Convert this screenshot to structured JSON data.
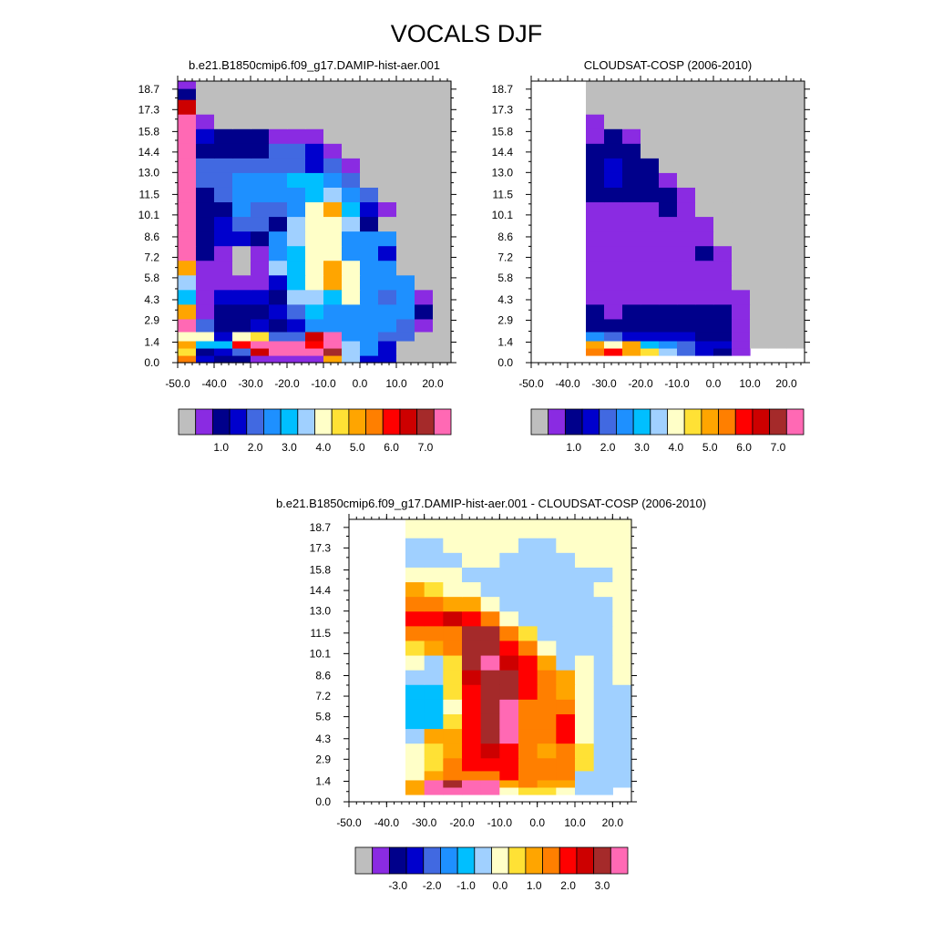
{
  "figure": {
    "title": "VOCALS DJF"
  },
  "chart_data": [
    {
      "type": "heatmap",
      "title": "b.e21.B1850cmip6.f09_g17.DAMIP-hist-aer.001",
      "x_tick_labels": [
        "-50.0",
        "-40.0",
        "-30.0",
        "-20.0",
        "-10.0",
        "0.0",
        "10.0",
        "20.0"
      ],
      "y_tick_labels": [
        "0.0",
        "1.4",
        "2.9",
        "4.3",
        "5.8",
        "7.2",
        "8.6",
        "10.1",
        "11.5",
        "13.0",
        "14.4",
        "15.8",
        "17.3",
        "18.7"
      ],
      "colorbar_labels": [
        "1.0",
        "2.0",
        "3.0",
        "4.0",
        "5.0",
        "6.0",
        "7.0"
      ],
      "colorbar_colors": [
        "#bebebe",
        "#8a2be2",
        "#00008b",
        "#0000cd",
        "#4169e1",
        "#1e90ff",
        "#00bfff",
        "#a0d0ff",
        "#ffffc8",
        "#ffe135",
        "#ffa500",
        "#ff7f00",
        "#ff0000",
        "#cd0000",
        "#a52a2a",
        "#ff69b4"
      ],
      "x": [
        -47.5,
        -42.5,
        -37.5,
        -32.5,
        -27.5,
        -22.5,
        -17.5,
        -12.5,
        -7.5,
        -2.5,
        2.5,
        7.5,
        12.5,
        17.5,
        22.5
      ],
      "y": [
        0.25,
        0.75,
        1.25,
        1.75,
        2.5,
        3.5,
        4.5,
        5.5,
        6.5,
        7.5,
        8.5,
        9.5,
        10.5,
        11.5,
        12.5,
        13.5,
        14.5,
        15.5,
        16.5,
        17.5,
        18.5,
        19.0
      ],
      "z_class": [
        [
          11,
          3,
          2,
          2,
          1,
          1,
          1,
          1,
          10,
          7,
          3,
          3,
          0,
          0,
          0
        ],
        [
          9,
          2,
          3,
          4,
          13,
          15,
          15,
          15,
          14,
          7,
          5,
          3,
          0,
          0,
          0
        ],
        [
          10,
          6,
          6,
          12,
          15,
          15,
          15,
          12,
          15,
          7,
          5,
          3,
          0,
          0,
          0
        ],
        [
          8,
          8,
          3,
          8,
          9,
          4,
          4,
          13,
          15,
          5,
          5,
          4,
          4,
          0,
          0
        ],
        [
          15,
          4,
          2,
          2,
          3,
          2,
          3,
          5,
          5,
          5,
          5,
          5,
          4,
          1,
          0
        ],
        [
          10,
          1,
          2,
          2,
          2,
          3,
          4,
          6,
          5,
          5,
          5,
          5,
          5,
          2,
          0
        ],
        [
          6,
          1,
          3,
          3,
          3,
          2,
          7,
          7,
          6,
          8,
          5,
          4,
          5,
          1,
          0
        ],
        [
          7,
          1,
          1,
          1,
          1,
          3,
          6,
          8,
          10,
          8,
          5,
          5,
          5,
          0,
          0
        ],
        [
          10,
          1,
          1,
          0,
          1,
          7,
          6,
          8,
          10,
          8,
          5,
          5,
          0,
          0,
          0
        ],
        [
          15,
          2,
          1,
          0,
          1,
          5,
          6,
          8,
          8,
          5,
          5,
          3,
          0,
          0,
          0
        ],
        [
          15,
          2,
          3,
          3,
          2,
          5,
          7,
          8,
          8,
          5,
          5,
          5,
          0,
          0,
          0
        ],
        [
          15,
          2,
          3,
          4,
          4,
          2,
          7,
          8,
          8,
          7,
          2,
          0,
          0,
          0,
          0
        ],
        [
          15,
          2,
          2,
          5,
          4,
          4,
          5,
          8,
          10,
          6,
          3,
          1,
          0,
          0,
          0
        ],
        [
          15,
          2,
          4,
          5,
          5,
          5,
          5,
          6,
          7,
          5,
          4,
          0,
          0,
          0,
          0
        ],
        [
          15,
          4,
          4,
          5,
          5,
          5,
          6,
          6,
          5,
          4,
          0,
          0,
          0,
          0,
          0
        ],
        [
          15,
          4,
          4,
          4,
          4,
          4,
          4,
          3,
          4,
          1,
          0,
          0,
          0,
          0,
          0
        ],
        [
          15,
          2,
          2,
          2,
          2,
          4,
          4,
          3,
          1,
          0,
          0,
          0,
          0,
          0,
          0
        ],
        [
          15,
          3,
          2,
          2,
          2,
          1,
          1,
          1,
          0,
          0,
          0,
          0,
          0,
          0,
          0
        ],
        [
          15,
          1,
          0,
          0,
          0,
          0,
          0,
          0,
          0,
          0,
          0,
          0,
          0,
          0,
          0
        ],
        [
          13,
          0,
          0,
          0,
          0,
          0,
          0,
          0,
          0,
          0,
          0,
          0,
          0,
          0,
          0
        ],
        [
          2,
          0,
          0,
          0,
          0,
          0,
          0,
          0,
          0,
          0,
          0,
          0,
          0,
          0,
          0
        ],
        [
          1,
          0,
          0,
          0,
          0,
          0,
          0,
          0,
          0,
          0,
          0,
          0,
          0,
          0,
          0
        ]
      ]
    },
    {
      "type": "heatmap",
      "title": "CLOUDSAT-COSP (2006-2010)",
      "x_tick_labels": [
        "-50.0",
        "-40.0",
        "-30.0",
        "-20.0",
        "-10.0",
        "0.0",
        "10.0",
        "20.0"
      ],
      "y_tick_labels": [
        "0.0",
        "1.4",
        "2.9",
        "4.3",
        "5.8",
        "7.2",
        "8.6",
        "10.1",
        "11.5",
        "13.0",
        "14.4",
        "15.8",
        "17.3",
        "18.7"
      ],
      "colorbar_labels": [
        "1.0",
        "2.0",
        "3.0",
        "4.0",
        "5.0",
        "6.0",
        "7.0"
      ],
      "colorbar_colors": [
        "#bebebe",
        "#8a2be2",
        "#00008b",
        "#0000cd",
        "#4169e1",
        "#1e90ff",
        "#00bfff",
        "#a0d0ff",
        "#ffffc8",
        "#ffe135",
        "#ffa500",
        "#ff7f00",
        "#ff0000",
        "#cd0000",
        "#a52a2a",
        "#ff69b4"
      ],
      "x": [
        -47.5,
        -42.5,
        -37.5,
        -32.5,
        -27.5,
        -22.5,
        -17.5,
        -12.5,
        -7.5,
        -2.5,
        2.5,
        7.5,
        12.5,
        17.5,
        22.5
      ],
      "y": [
        0.25,
        0.75,
        1.25,
        1.75,
        2.5,
        3.5,
        4.5,
        5.5,
        6.5,
        7.5,
        8.5,
        9.5,
        10.5,
        11.5,
        12.5,
        13.5,
        14.5,
        15.5,
        16.5,
        17.5,
        18.5,
        19.0
      ],
      "z_class": [
        [
          -1,
          -1,
          -1,
          -1,
          -1,
          -1,
          -1,
          -1,
          -1,
          -1,
          -1,
          -1,
          -1,
          -1,
          -1
        ],
        [
          -1,
          -1,
          -1,
          11,
          12,
          10,
          9,
          7,
          4,
          3,
          2,
          1,
          -1,
          -1,
          -1
        ],
        [
          -1,
          -1,
          -1,
          10,
          8,
          10,
          6,
          5,
          4,
          3,
          3,
          1,
          0,
          0,
          0
        ],
        [
          -1,
          -1,
          -1,
          5,
          4,
          3,
          3,
          3,
          3,
          2,
          2,
          1,
          0,
          0,
          0
        ],
        [
          -1,
          -1,
          -1,
          2,
          2,
          2,
          2,
          2,
          2,
          2,
          2,
          1,
          0,
          0,
          0
        ],
        [
          -1,
          -1,
          -1,
          2,
          1,
          2,
          2,
          2,
          2,
          2,
          2,
          1,
          0,
          0,
          0
        ],
        [
          -1,
          -1,
          -1,
          1,
          1,
          1,
          1,
          1,
          1,
          1,
          1,
          1,
          0,
          0,
          0
        ],
        [
          -1,
          -1,
          -1,
          1,
          1,
          1,
          1,
          1,
          1,
          1,
          1,
          0,
          0,
          0,
          0
        ],
        [
          -1,
          -1,
          -1,
          1,
          1,
          1,
          1,
          1,
          1,
          1,
          1,
          0,
          0,
          0,
          0
        ],
        [
          -1,
          -1,
          -1,
          1,
          1,
          1,
          1,
          1,
          1,
          2,
          1,
          0,
          0,
          0,
          0
        ],
        [
          -1,
          -1,
          -1,
          1,
          1,
          1,
          1,
          1,
          1,
          1,
          0,
          0,
          0,
          0,
          0
        ],
        [
          -1,
          -1,
          -1,
          1,
          1,
          1,
          1,
          1,
          1,
          1,
          0,
          0,
          0,
          0,
          0
        ],
        [
          -1,
          -1,
          -1,
          1,
          1,
          1,
          1,
          2,
          1,
          0,
          0,
          0,
          0,
          0,
          0
        ],
        [
          -1,
          -1,
          -1,
          2,
          2,
          2,
          2,
          2,
          1,
          0,
          0,
          0,
          0,
          0,
          0
        ],
        [
          -1,
          -1,
          -1,
          2,
          3,
          2,
          2,
          1,
          0,
          0,
          0,
          0,
          0,
          0,
          0
        ],
        [
          -1,
          -1,
          -1,
          2,
          3,
          2,
          2,
          0,
          0,
          0,
          0,
          0,
          0,
          0,
          0
        ],
        [
          -1,
          -1,
          -1,
          2,
          2,
          2,
          0,
          0,
          0,
          0,
          0,
          0,
          0,
          0,
          0
        ],
        [
          -1,
          -1,
          -1,
          1,
          2,
          1,
          0,
          0,
          0,
          0,
          0,
          0,
          0,
          0,
          0
        ],
        [
          -1,
          -1,
          -1,
          1,
          0,
          0,
          0,
          0,
          0,
          0,
          0,
          0,
          0,
          0,
          0
        ],
        [
          -1,
          -1,
          -1,
          0,
          0,
          0,
          0,
          0,
          0,
          0,
          0,
          0,
          0,
          0,
          0
        ],
        [
          -1,
          -1,
          -1,
          0,
          0,
          0,
          0,
          0,
          0,
          0,
          0,
          0,
          0,
          0,
          0
        ],
        [
          -1,
          -1,
          -1,
          0,
          0,
          0,
          0,
          0,
          0,
          0,
          0,
          0,
          0,
          0,
          0
        ]
      ]
    },
    {
      "type": "heatmap",
      "title": "b.e21.B1850cmip6.f09_g17.DAMIP-hist-aer.001 - CLOUDSAT-COSP (2006-2010)",
      "x_tick_labels": [
        "-50.0",
        "-40.0",
        "-30.0",
        "-20.0",
        "-10.0",
        "0.0",
        "10.0",
        "20.0"
      ],
      "y_tick_labels": [
        "0.0",
        "1.4",
        "2.9",
        "4.3",
        "5.8",
        "7.2",
        "8.6",
        "10.1",
        "11.5",
        "13.0",
        "14.4",
        "15.8",
        "17.3",
        "18.7"
      ],
      "colorbar_labels": [
        "-3.0",
        "-2.0",
        "-1.0",
        "0.0",
        "1.0",
        "2.0",
        "3.0"
      ],
      "colorbar_colors": [
        "#bebebe",
        "#8a2be2",
        "#00008b",
        "#0000cd",
        "#4169e1",
        "#1e90ff",
        "#00bfff",
        "#a0d0ff",
        "#ffffc8",
        "#ffe135",
        "#ffa500",
        "#ff7f00",
        "#ff0000",
        "#cd0000",
        "#a52a2a",
        "#ff69b4"
      ],
      "x": [
        -47.5,
        -42.5,
        -37.5,
        -32.5,
        -27.5,
        -22.5,
        -17.5,
        -12.5,
        -7.5,
        -2.5,
        2.5,
        7.5,
        12.5,
        17.5,
        22.5
      ],
      "y": [
        0.25,
        0.75,
        1.25,
        1.75,
        2.5,
        3.5,
        4.5,
        5.5,
        6.5,
        7.5,
        8.5,
        9.5,
        10.5,
        11.5,
        12.5,
        13.5,
        14.5,
        15.5,
        16.5,
        17.5,
        18.5,
        19.0
      ],
      "z_class": [
        [
          -1,
          -1,
          -1,
          -1,
          -1,
          -1,
          -1,
          -1,
          -1,
          -1,
          -1,
          -1,
          -1,
          -1,
          -1
        ],
        [
          -1,
          -1,
          -1,
          10,
          15,
          15,
          15,
          15,
          8,
          9,
          9,
          8,
          7,
          7,
          -1
        ],
        [
          -1,
          -1,
          -1,
          10,
          15,
          14,
          15,
          15,
          10,
          11,
          10,
          10,
          7,
          7,
          7
        ],
        [
          -1,
          -1,
          -1,
          8,
          10,
          11,
          11,
          11,
          12,
          11,
          11,
          11,
          7,
          7,
          7
        ],
        [
          -1,
          -1,
          -1,
          8,
          9,
          11,
          12,
          12,
          12,
          11,
          11,
          11,
          9,
          7,
          7
        ],
        [
          -1,
          -1,
          -1,
          8,
          9,
          10,
          12,
          13,
          12,
          11,
          10,
          11,
          9,
          7,
          7
        ],
        [
          -1,
          -1,
          -1,
          7,
          10,
          10,
          12,
          14,
          15,
          11,
          11,
          12,
          8,
          7,
          7
        ],
        [
          -1,
          -1,
          -1,
          6,
          6,
          9,
          12,
          14,
          15,
          11,
          11,
          12,
          8,
          7,
          7
        ],
        [
          -1,
          -1,
          -1,
          6,
          6,
          8,
          12,
          14,
          15,
          11,
          11,
          11,
          8,
          7,
          7
        ],
        [
          -1,
          -1,
          -1,
          6,
          6,
          9,
          12,
          14,
          14,
          12,
          11,
          10,
          8,
          7,
          7
        ],
        [
          -1,
          -1,
          -1,
          7,
          7,
          9,
          13,
          14,
          14,
          12,
          11,
          10,
          8,
          7,
          8
        ],
        [
          -1,
          -1,
          -1,
          8,
          7,
          9,
          14,
          15,
          13,
          12,
          10,
          7,
          8,
          7,
          8
        ],
        [
          -1,
          -1,
          -1,
          9,
          10,
          11,
          14,
          14,
          12,
          11,
          8,
          7,
          7,
          7,
          8
        ],
        [
          -1,
          -1,
          -1,
          11,
          11,
          11,
          14,
          14,
          11,
          9,
          7,
          7,
          7,
          7,
          8
        ],
        [
          -1,
          -1,
          -1,
          12,
          12,
          13,
          12,
          11,
          8,
          7,
          7,
          7,
          7,
          7,
          8
        ],
        [
          -1,
          -1,
          -1,
          11,
          11,
          10,
          10,
          8,
          7,
          7,
          7,
          7,
          7,
          7,
          8
        ],
        [
          -1,
          -1,
          -1,
          10,
          9,
          8,
          8,
          7,
          7,
          7,
          7,
          7,
          7,
          8,
          8
        ],
        [
          -1,
          -1,
          -1,
          8,
          8,
          8,
          7,
          7,
          7,
          7,
          7,
          7,
          7,
          7,
          8
        ],
        [
          -1,
          -1,
          -1,
          7,
          7,
          7,
          8,
          8,
          7,
          7,
          7,
          7,
          8,
          8,
          8
        ],
        [
          -1,
          -1,
          -1,
          7,
          7,
          8,
          8,
          8,
          8,
          7,
          7,
          8,
          8,
          8,
          8
        ],
        [
          -1,
          -1,
          -1,
          8,
          8,
          8,
          8,
          8,
          8,
          8,
          8,
          8,
          8,
          8,
          8
        ],
        [
          -1,
          -1,
          -1,
          8,
          8,
          8,
          8,
          8,
          8,
          8,
          8,
          8,
          8,
          8,
          8
        ]
      ]
    }
  ]
}
